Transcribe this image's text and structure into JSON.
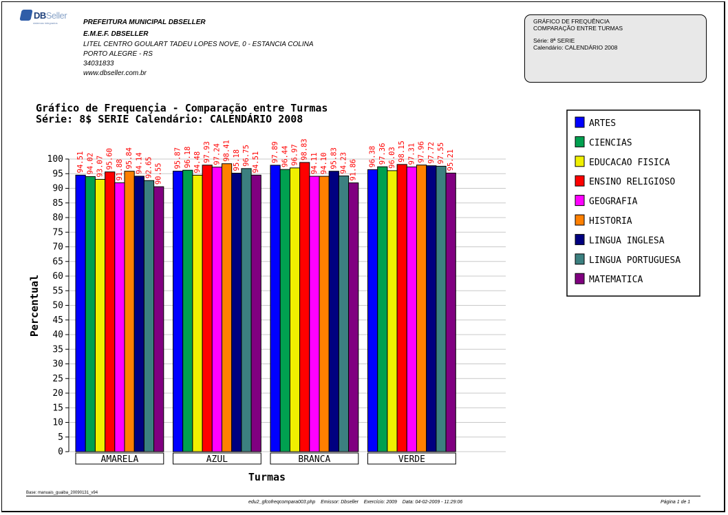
{
  "logo": {
    "brand_main": "DB",
    "brand_light": "Seller",
    "tagline": "sistemas integrados"
  },
  "header": {
    "institution": "PREFEITURA MUNICIPAL DBSELLER",
    "school": "E.M.E.F. DBSELLER",
    "address": "LITEL CENTRO GOULART TADEU LOPES NOVE, 0 - ESTANCIA COLINA",
    "city": "PORTO ALEGRE - RS",
    "phone": "34031833",
    "website": "www.dbseller.com.br"
  },
  "info_box": {
    "line1": "GRÁFICO DE FREQUÊNCIA",
    "line2": "COMPARAÇÃO ENTRE TURMAS",
    "serie": "Série: 8ª SERIE",
    "calendario": "Calendário: CALENDÁRIO 2008"
  },
  "chart_data": {
    "type": "bar",
    "title": "Gráfico de Frequençia - Comparação entre Turmas",
    "subtitle": "Série: 8$ SERIE  Calendário: CALENDÁRIO 2008",
    "xlabel": "Turmas",
    "ylabel": "Percentual",
    "ylim": [
      0,
      100
    ],
    "ytick_step": 5,
    "grid": true,
    "legend_position": "top-right",
    "categories": [
      "AMARELA",
      "AZUL",
      "BRANCA",
      "VERDE"
    ],
    "series": [
      {
        "name": "ARTES",
        "color": "#0000ff",
        "values": [
          94.51,
          95.87,
          97.89,
          96.38
        ]
      },
      {
        "name": "CIENCIAS",
        "color": "#00a050",
        "values": [
          94.02,
          96.18,
          96.44,
          97.36
        ]
      },
      {
        "name": "EDUCACAO FISICA",
        "color": "#f0f000",
        "values": [
          93.07,
          94.48,
          96.97,
          96.03
        ]
      },
      {
        "name": "ENSINO RELIGIOSO",
        "color": "#ff0000",
        "values": [
          95.6,
          97.93,
          98.83,
          98.15
        ]
      },
      {
        "name": "GEOGRAFIA",
        "color": "#ff00ff",
        "values": [
          91.88,
          97.24,
          94.11,
          97.31
        ]
      },
      {
        "name": "HISTORIA",
        "color": "#ff8000",
        "values": [
          95.84,
          98.41,
          94.1,
          97.96
        ]
      },
      {
        "name": "LINGUA INGLESA",
        "color": "#000080",
        "values": [
          94.14,
          95.18,
          95.83,
          97.72
        ]
      },
      {
        "name": "LINGUA PORTUGUESA",
        "color": "#3c8080",
        "values": [
          92.65,
          96.75,
          94.23,
          97.55
        ]
      },
      {
        "name": "MATEMATICA",
        "color": "#800080",
        "values": [
          90.55,
          94.51,
          91.86,
          95.21
        ]
      }
    ],
    "value_label_color": "#ff0000"
  },
  "footer": {
    "base": "Base: manuais_guaiba_20090131_v94",
    "program": "edu2_gfcofreqcompara003.php    Emissor: Dbseller    Exercício: 2009    Data: 04-02-2009 - 11:29:06",
    "page": "Página 1 de 1"
  }
}
